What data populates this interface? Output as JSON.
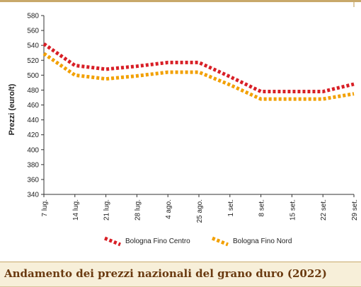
{
  "chart_data": {
    "type": "line",
    "title": "Andamento dei prezzi nazionali del grano duro (2022)",
    "xlabel": "",
    "ylabel": "Prezzi (euro/t)",
    "categories": [
      "7 lug.",
      "14 lug.",
      "21 lug.",
      "28 lug.",
      "4 ago.",
      "25 ago.",
      "1 set.",
      "8 set.",
      "15 set.",
      "22 set.",
      "29 set."
    ],
    "ylim": [
      340,
      580
    ],
    "yticks": [
      340,
      360,
      380,
      400,
      420,
      440,
      460,
      480,
      500,
      520,
      540,
      560,
      580
    ],
    "grid": false,
    "legend_position": "bottom",
    "series": [
      {
        "name": "Bologna Fino Centro",
        "color": "#d81f26",
        "values": [
          542,
          513,
          508,
          512,
          517,
          517,
          498,
          478,
          478,
          478,
          488
        ]
      },
      {
        "name": "Bologna Fino Nord",
        "color": "#f2a000",
        "values": [
          529,
          500,
          495,
          499,
          504,
          504,
          487,
          468,
          468,
          468,
          475
        ]
      }
    ]
  }
}
